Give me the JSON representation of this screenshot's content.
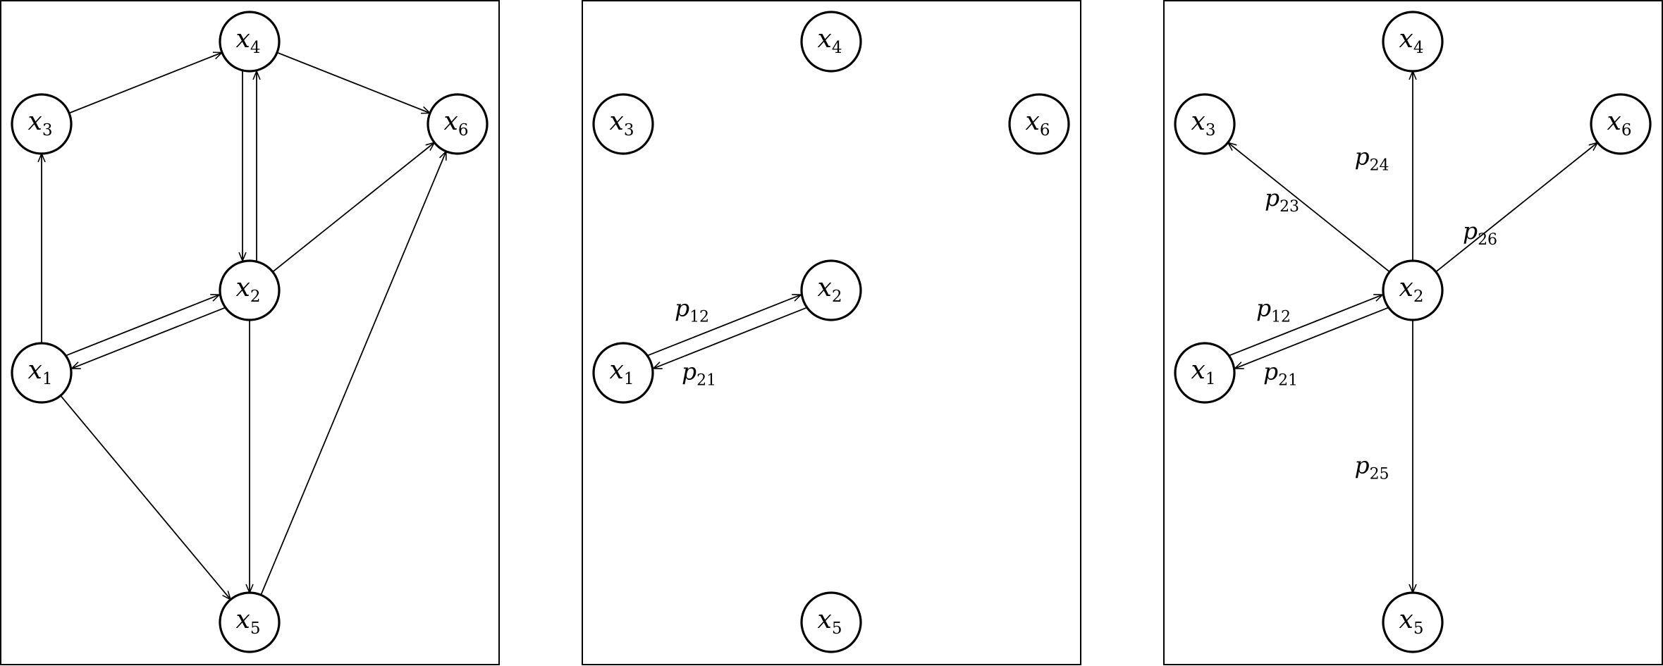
{
  "nodes": {
    "x1": {
      "var": "x",
      "sub": "1"
    },
    "x2": {
      "var": "x",
      "sub": "2"
    },
    "x3": {
      "var": "x",
      "sub": "3"
    },
    "x4": {
      "var": "x",
      "sub": "4"
    },
    "x5": {
      "var": "x",
      "sub": "5"
    },
    "x6": {
      "var": "x",
      "sub": "6"
    }
  },
  "panels": [
    {
      "name": "graph-panel-full",
      "edges": [
        {
          "from": "x1",
          "to": "x3"
        },
        {
          "from": "x3",
          "to": "x4"
        },
        {
          "from": "x4",
          "to": "x6"
        },
        {
          "from": "x4",
          "to": "x2",
          "pair": "left"
        },
        {
          "from": "x2",
          "to": "x4",
          "pair": "right"
        },
        {
          "from": "x1",
          "to": "x2",
          "pair": "upper"
        },
        {
          "from": "x2",
          "to": "x1",
          "pair": "lower"
        },
        {
          "from": "x2",
          "to": "x6"
        },
        {
          "from": "x2",
          "to": "x5"
        },
        {
          "from": "x1",
          "to": "x5"
        },
        {
          "from": "x5",
          "to": "x6"
        }
      ]
    },
    {
      "name": "graph-panel-pair",
      "edges": [
        {
          "from": "x1",
          "to": "x2",
          "pair": "upper",
          "label": {
            "var": "p",
            "sub": "12"
          }
        },
        {
          "from": "x2",
          "to": "x1",
          "pair": "lower",
          "label": {
            "var": "p",
            "sub": "21"
          }
        }
      ]
    },
    {
      "name": "graph-panel-star",
      "edges": [
        {
          "from": "x1",
          "to": "x2",
          "pair": "upper",
          "label": {
            "var": "p",
            "sub": "12"
          }
        },
        {
          "from": "x2",
          "to": "x1",
          "pair": "lower",
          "label": {
            "var": "p",
            "sub": "21"
          }
        },
        {
          "from": "x2",
          "to": "x3",
          "label": {
            "var": "p",
            "sub": "23"
          }
        },
        {
          "from": "x2",
          "to": "x4",
          "label": {
            "var": "p",
            "sub": "24"
          }
        },
        {
          "from": "x2",
          "to": "x5",
          "label": {
            "var": "p",
            "sub": "25"
          }
        },
        {
          "from": "x2",
          "to": "x6",
          "label": {
            "var": "p",
            "sub": "26"
          }
        }
      ]
    }
  ]
}
